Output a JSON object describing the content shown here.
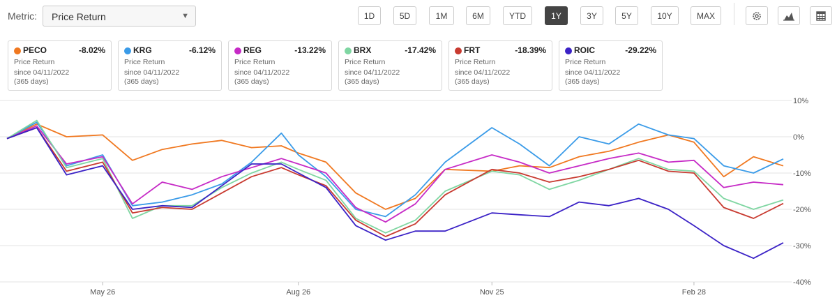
{
  "metric": {
    "label": "Metric:",
    "selected": "Price Return"
  },
  "periods": [
    "1D",
    "5D",
    "1M",
    "6M",
    "YTD",
    "1Y",
    "3Y",
    "5Y",
    "10Y",
    "MAX"
  ],
  "active_period": "1Y",
  "tools": [
    {
      "icon": "gear-icon"
    },
    {
      "icon": "mountain-chart-icon"
    },
    {
      "icon": "table-icon"
    }
  ],
  "cards": [
    {
      "ticker": "PECO",
      "value": "-8.02%",
      "metric": "Price Return",
      "since": "since 04/11/2022",
      "days": "(365 days)",
      "color": "#f07820"
    },
    {
      "ticker": "KRG",
      "value": "-6.12%",
      "metric": "Price Return",
      "since": "since 04/11/2022",
      "days": "(365 days)",
      "color": "#3a9be8"
    },
    {
      "ticker": "REG",
      "value": "-13.22%",
      "metric": "Price Return",
      "since": "since 04/11/2022",
      "days": "(365 days)",
      "color": "#c62ac6"
    },
    {
      "ticker": "BRX",
      "value": "-17.42%",
      "metric": "Price Return",
      "since": "since 04/11/2022",
      "days": "(365 days)",
      "color": "#7fd6a2"
    },
    {
      "ticker": "FRT",
      "value": "-18.39%",
      "metric": "Price Return",
      "since": "since 04/11/2022",
      "days": "(365 days)",
      "color": "#c83a30"
    },
    {
      "ticker": "ROIC",
      "value": "-29.22%",
      "metric": "Price Return",
      "since": "since 04/11/2022",
      "days": "(365 days)",
      "color": "#3b22c6"
    }
  ],
  "chart_data": {
    "type": "line",
    "x_start": "2022-04-11",
    "x_end": "2023-04-11",
    "x_ticks": [
      "May 26",
      "Aug 26",
      "Nov 25",
      "Feb 28"
    ],
    "x_tick_dates": [
      "2022-05-26",
      "2022-08-26",
      "2022-11-25",
      "2023-02-28"
    ],
    "y_ticks": [
      10,
      0,
      -10,
      -20,
      -30,
      -40
    ],
    "y_tick_labels": [
      "10%",
      "0%",
      "-10%",
      "-20%",
      "-30%",
      "-40%"
    ],
    "ylim": [
      -40,
      10
    ],
    "grid": true,
    "series": [
      {
        "name": "PECO",
        "color": "#f07820",
        "x": [
          "2022-04-11",
          "2022-04-25",
          "2022-05-09",
          "2022-05-26",
          "2022-06-09",
          "2022-06-23",
          "2022-07-07",
          "2022-07-21",
          "2022-08-04",
          "2022-08-18",
          "2022-08-26",
          "2022-09-08",
          "2022-09-22",
          "2022-10-06",
          "2022-10-20",
          "2022-11-03",
          "2022-11-25",
          "2022-12-08",
          "2022-12-22",
          "2023-01-05",
          "2023-01-19",
          "2023-02-02",
          "2023-02-16",
          "2023-02-28",
          "2023-03-14",
          "2023-03-28",
          "2023-04-11"
        ],
        "y": [
          -0.5,
          3.5,
          0.0,
          0.5,
          -6.5,
          -3.5,
          -2.0,
          -1.0,
          -3.0,
          -2.5,
          -4.5,
          -7.0,
          -15.5,
          -20.0,
          -17.0,
          -9.0,
          -9.5,
          -8.0,
          -8.5,
          -5.5,
          -4.0,
          -1.5,
          0.5,
          -1.5,
          -11.0,
          -5.5,
          -8.02
        ]
      },
      {
        "name": "KRG",
        "color": "#3a9be8",
        "x": [
          "2022-04-11",
          "2022-04-25",
          "2022-05-09",
          "2022-05-26",
          "2022-06-09",
          "2022-06-23",
          "2022-07-07",
          "2022-07-21",
          "2022-08-04",
          "2022-08-18",
          "2022-08-26",
          "2022-09-08",
          "2022-09-22",
          "2022-10-06",
          "2022-10-20",
          "2022-11-03",
          "2022-11-25",
          "2022-12-08",
          "2022-12-22",
          "2023-01-05",
          "2023-01-19",
          "2023-02-02",
          "2023-02-16",
          "2023-02-28",
          "2023-03-14",
          "2023-03-28",
          "2023-04-11"
        ],
        "y": [
          -0.5,
          4.0,
          -8.0,
          -5.0,
          -19.0,
          -18.0,
          -16.0,
          -13.0,
          -7.0,
          1.0,
          -5.0,
          -11.0,
          -20.0,
          -22.0,
          -16.0,
          -7.0,
          2.5,
          -2.0,
          -8.0,
          0.0,
          -2.0,
          3.5,
          0.5,
          -0.5,
          -8.0,
          -10.0,
          -6.12
        ]
      },
      {
        "name": "REG",
        "color": "#c62ac6",
        "x": [
          "2022-04-11",
          "2022-04-25",
          "2022-05-09",
          "2022-05-26",
          "2022-06-09",
          "2022-06-23",
          "2022-07-07",
          "2022-07-21",
          "2022-08-04",
          "2022-08-18",
          "2022-08-26",
          "2022-09-08",
          "2022-09-22",
          "2022-10-06",
          "2022-10-20",
          "2022-11-03",
          "2022-11-25",
          "2022-12-08",
          "2022-12-22",
          "2023-01-05",
          "2023-01-19",
          "2023-02-02",
          "2023-02-16",
          "2023-02-28",
          "2023-03-14",
          "2023-03-28",
          "2023-04-11"
        ],
        "y": [
          -0.5,
          3.0,
          -7.5,
          -5.5,
          -18.5,
          -12.5,
          -14.5,
          -11.0,
          -8.5,
          -6.0,
          -7.5,
          -10.0,
          -19.5,
          -23.5,
          -18.5,
          -9.0,
          -5.0,
          -7.0,
          -10.0,
          -8.0,
          -6.0,
          -4.5,
          -7.0,
          -6.5,
          -14.0,
          -12.5,
          -13.22
        ]
      },
      {
        "name": "BRX",
        "color": "#7fd6a2",
        "x": [
          "2022-04-11",
          "2022-04-25",
          "2022-05-09",
          "2022-05-26",
          "2022-06-09",
          "2022-06-23",
          "2022-07-07",
          "2022-07-21",
          "2022-08-04",
          "2022-08-18",
          "2022-08-26",
          "2022-09-08",
          "2022-09-22",
          "2022-10-06",
          "2022-10-20",
          "2022-11-03",
          "2022-11-25",
          "2022-12-08",
          "2022-12-22",
          "2023-01-05",
          "2023-01-19",
          "2023-02-02",
          "2023-02-16",
          "2023-02-28",
          "2023-03-14",
          "2023-03-28",
          "2023-04-11"
        ],
        "y": [
          -0.5,
          4.5,
          -8.5,
          -6.0,
          -22.5,
          -19.0,
          -19.0,
          -14.0,
          -10.0,
          -7.0,
          -9.0,
          -12.0,
          -22.5,
          -26.5,
          -23.0,
          -15.0,
          -9.5,
          -10.5,
          -14.5,
          -12.0,
          -9.0,
          -6.0,
          -9.0,
          -9.5,
          -17.0,
          -20.0,
          -17.42
        ]
      },
      {
        "name": "FRT",
        "color": "#c83a30",
        "x": [
          "2022-04-11",
          "2022-04-25",
          "2022-05-09",
          "2022-05-26",
          "2022-06-09",
          "2022-06-23",
          "2022-07-07",
          "2022-07-21",
          "2022-08-04",
          "2022-08-18",
          "2022-08-26",
          "2022-09-08",
          "2022-09-22",
          "2022-10-06",
          "2022-10-20",
          "2022-11-03",
          "2022-11-25",
          "2022-12-08",
          "2022-12-22",
          "2023-01-05",
          "2023-01-19",
          "2023-02-02",
          "2023-02-16",
          "2023-02-28",
          "2023-03-14",
          "2023-03-28",
          "2023-04-11"
        ],
        "y": [
          -0.5,
          2.5,
          -9.5,
          -7.0,
          -21.0,
          -19.5,
          -20.0,
          -15.5,
          -11.0,
          -8.5,
          -10.5,
          -13.5,
          -23.0,
          -27.5,
          -24.0,
          -16.0,
          -9.0,
          -10.0,
          -12.5,
          -11.0,
          -9.0,
          -6.5,
          -9.5,
          -10.0,
          -19.5,
          -22.5,
          -18.39
        ]
      },
      {
        "name": "ROIC",
        "color": "#3b22c6",
        "x": [
          "2022-04-11",
          "2022-04-25",
          "2022-05-09",
          "2022-05-26",
          "2022-06-09",
          "2022-06-23",
          "2022-07-07",
          "2022-07-21",
          "2022-08-04",
          "2022-08-18",
          "2022-08-26",
          "2022-09-08",
          "2022-09-22",
          "2022-10-06",
          "2022-10-20",
          "2022-11-03",
          "2022-11-25",
          "2022-12-08",
          "2022-12-22",
          "2023-01-05",
          "2023-01-19",
          "2023-02-02",
          "2023-02-16",
          "2023-02-28",
          "2023-03-14",
          "2023-03-28",
          "2023-04-11"
        ],
        "y": [
          -0.5,
          2.5,
          -10.5,
          -8.0,
          -20.0,
          -19.0,
          -19.5,
          -13.5,
          -7.5,
          -7.5,
          -10.0,
          -14.0,
          -24.5,
          -28.5,
          -26.0,
          -26.0,
          -21.0,
          -21.5,
          -22.0,
          -18.0,
          -19.0,
          -17.0,
          -20.0,
          -24.5,
          -30.0,
          -33.5,
          -29.22
        ]
      }
    ]
  }
}
